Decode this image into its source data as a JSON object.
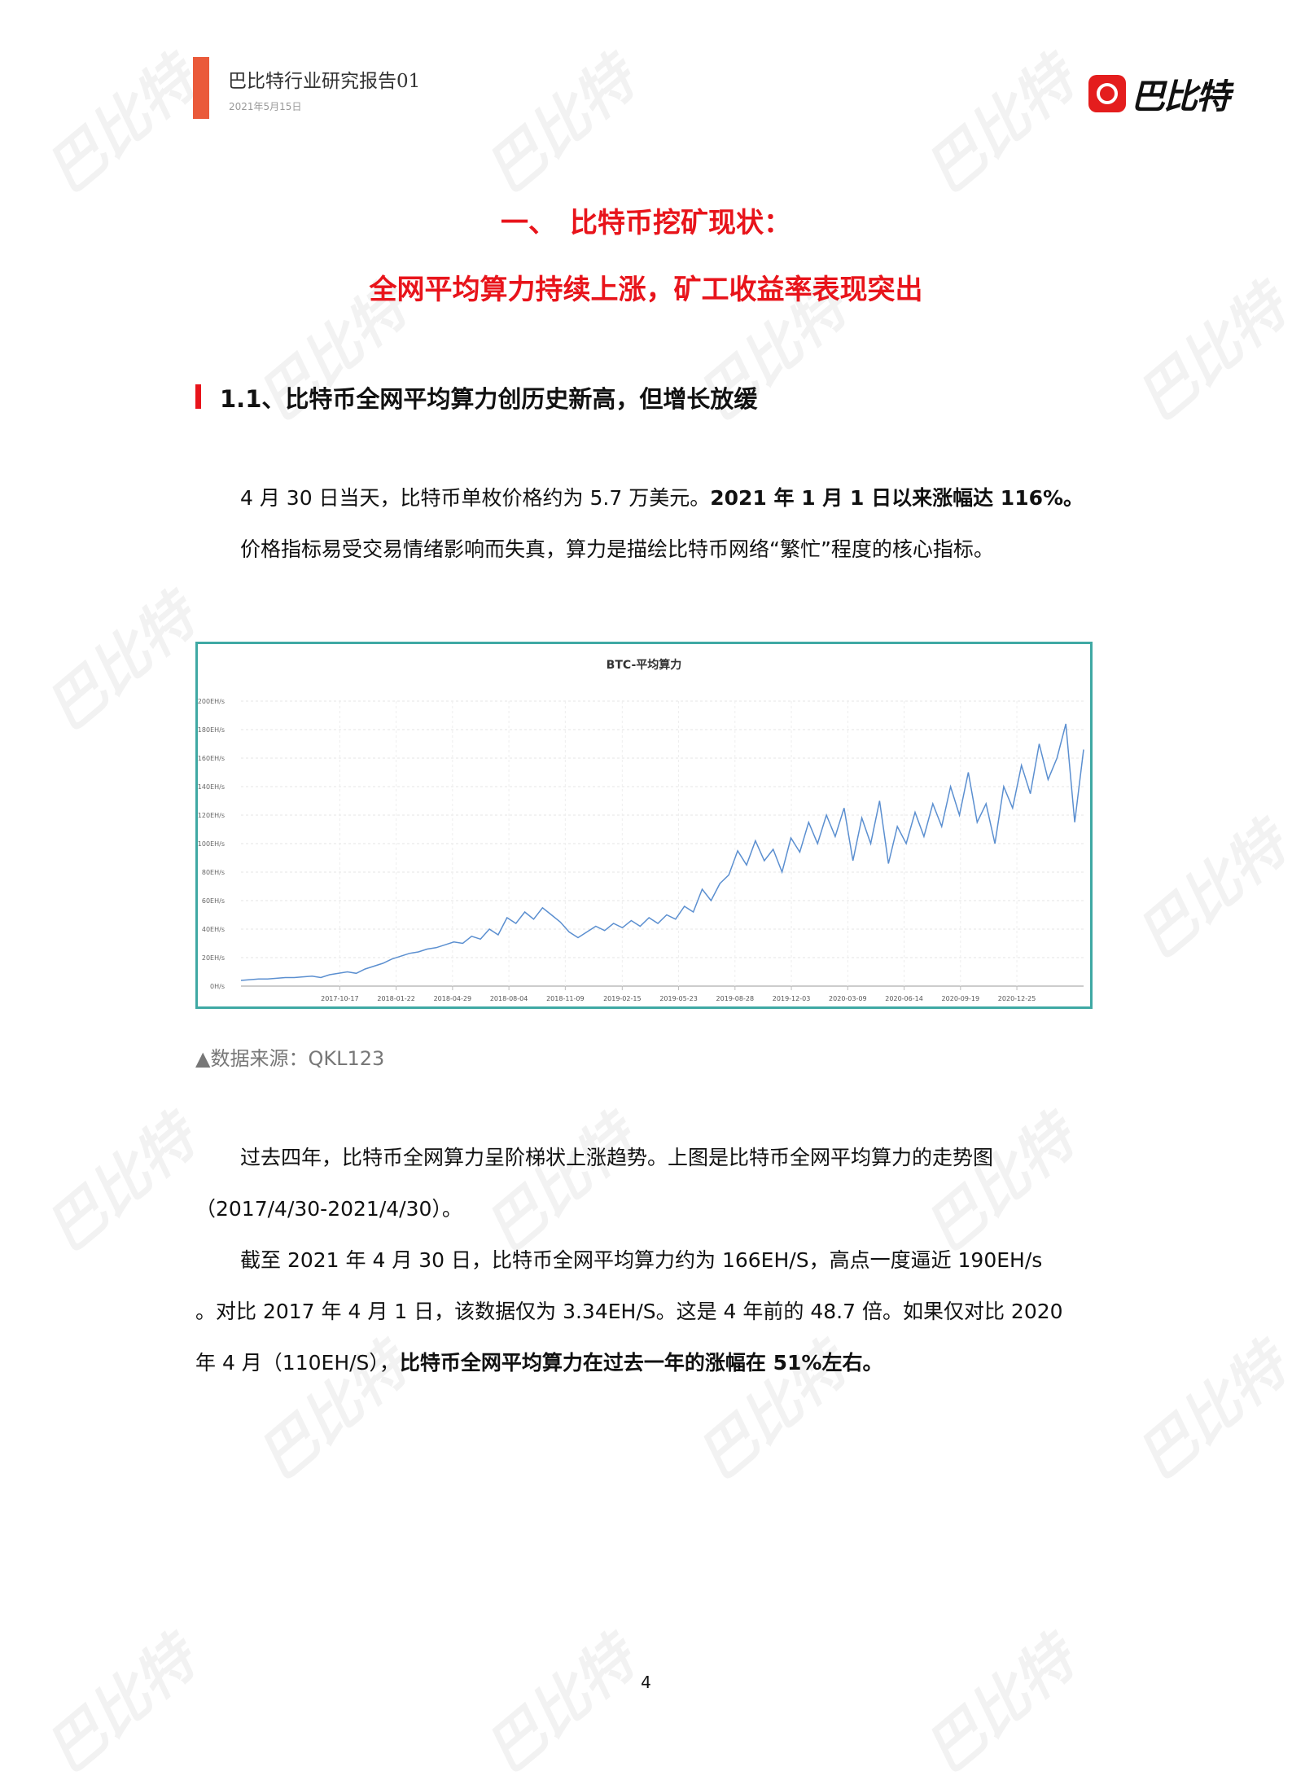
{
  "header": {
    "title": "巴比特行业研究报告01",
    "date": "2021年5月15日",
    "logo_text": "巴比特",
    "accent": "#ea5a3a"
  },
  "watermark": "巴比特",
  "headings": {
    "main_1": "一、　比特币挖矿现状：",
    "main_2": "全网平均算力持续上涨，矿工收益率表现突出",
    "section": "1.1、比特币全网平均算力创历史新高，但增长放缓"
  },
  "para1": {
    "line1_normal": "4 月 30 日当天，比特币单枚价格约为 5.7 万美元。",
    "line1_bold": "2021 年 1 月 1 日以来涨幅达 116%。",
    "line2": "价格指标易受交易情绪影响而失真，算力是描绘比特币网络“繁忙”程度的核心指标。"
  },
  "source": "▲数据来源：QKL123",
  "para2": {
    "line1": "过去四年，比特币全网算力呈阶梯状上涨趋势。上图是比特币全网平均算力的走势图",
    "line2": "（2017/4/30-2021/4/30）。"
  },
  "para3": {
    "line1": "截至 2021 年 4 月 30 日，比特币全网平均算力约为 166EH/S，高点一度逼近 190EH/s",
    "line2": "。对比 2017 年 4 月 1 日，该数据仅为 3.34EH/S。这是 4 年前的 48.7 倍。如果仅对比 2020",
    "line3_normal": "年 4 月（110EH/S），",
    "line3_bold": "比特币全网平均算力在过去一年的涨幅在 51%左右。"
  },
  "page_number": "4",
  "chart_data": {
    "type": "line",
    "title": "BTC-平均算力",
    "x_start": "2017-04-30",
    "x_end": "2021-04-30",
    "sampling": "semi-monthly",
    "x_tick_labels": [
      "2017-10-17",
      "2018-01-22",
      "2018-04-29",
      "2018-08-04",
      "2018-11-09",
      "2019-02-15",
      "2019-05-23",
      "2019-08-28",
      "2019-12-03",
      "2020-03-09",
      "2020-06-14",
      "2020-09-19",
      "2020-12-25"
    ],
    "y_tick_labels": [
      "0H/s",
      "20EH/s",
      "40EH/s",
      "60EH/s",
      "80EH/s",
      "100EH/s",
      "120EH/s",
      "140EH/s",
      "160EH/s",
      "180EH/s",
      "200EH/s"
    ],
    "ylim": [
      0,
      200
    ],
    "grid": true,
    "line_color": "#5b8fd0",
    "values": [
      4,
      4.5,
      5,
      5,
      5.5,
      6,
      6,
      6.5,
      7,
      6,
      8,
      9,
      10,
      9,
      12,
      14,
      16,
      19,
      21,
      23,
      24,
      26,
      27,
      29,
      31,
      30,
      35,
      33,
      40,
      36,
      48,
      44,
      52,
      47,
      55,
      50,
      45,
      38,
      34,
      38,
      42,
      39,
      44,
      41,
      46,
      42,
      48,
      44,
      50,
      47,
      56,
      52,
      68,
      60,
      72,
      78,
      95,
      85,
      102,
      88,
      96,
      80,
      104,
      94,
      115,
      100,
      120,
      105,
      125,
      88,
      118,
      100,
      130,
      86,
      112,
      100,
      122,
      105,
      128,
      112,
      140,
      120,
      150,
      115,
      128,
      100,
      140,
      125,
      155,
      135,
      170,
      145,
      160,
      184,
      115,
      166
    ]
  }
}
